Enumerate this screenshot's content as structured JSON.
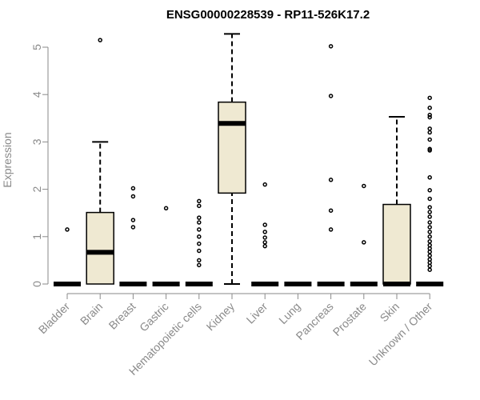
{
  "chart_data": {
    "type": "boxplot",
    "title": "ENSG00000228539 - RP11-526K17.2",
    "xlabel": "",
    "ylabel": "Expression",
    "ylim": [
      0,
      5.3
    ],
    "yticks": [
      0,
      1,
      2,
      3,
      4,
      5
    ],
    "box_fill": "#efe9d2",
    "categories": [
      "Bladder",
      "Brain",
      "Breast",
      "Gastric",
      "Hematopoietic cells",
      "Kidney",
      "Liver",
      "Lung",
      "Pancreas",
      "Prostate",
      "Skin",
      "Unknown / Other"
    ],
    "boxes": [
      {
        "q1": 0,
        "median": 0,
        "q3": 0,
        "whisker_low": 0,
        "whisker_high": 0,
        "outliers": [
          1.15
        ]
      },
      {
        "q1": 0,
        "median": 0.67,
        "q3": 1.51,
        "whisker_low": 0,
        "whisker_high": 3.0,
        "outliers": [
          5.15
        ]
      },
      {
        "q1": 0,
        "median": 0,
        "q3": 0,
        "whisker_low": 0,
        "whisker_high": 0,
        "outliers": [
          1.2,
          1.35,
          1.85,
          2.02
        ]
      },
      {
        "q1": 0,
        "median": 0,
        "q3": 0,
        "whisker_low": 0,
        "whisker_high": 0,
        "outliers": [
          1.6
        ]
      },
      {
        "q1": 0,
        "median": 0,
        "q3": 0,
        "whisker_low": 0,
        "whisker_high": 0,
        "outliers": [
          0.4,
          0.5,
          0.7,
          0.85,
          1.0,
          1.15,
          1.3,
          1.4,
          1.65,
          1.75
        ]
      },
      {
        "q1": 1.92,
        "median": 3.39,
        "q3": 3.84,
        "whisker_low": 0,
        "whisker_high": 5.28,
        "outliers": []
      },
      {
        "q1": 0,
        "median": 0,
        "q3": 0,
        "whisker_low": 0,
        "whisker_high": 0,
        "outliers": [
          0.8,
          0.88,
          0.98,
          1.1,
          1.25,
          2.1
        ]
      },
      {
        "q1": 0,
        "median": 0,
        "q3": 0,
        "whisker_low": 0,
        "whisker_high": 0,
        "outliers": []
      },
      {
        "q1": 0,
        "median": 0,
        "q3": 0,
        "whisker_low": 0,
        "whisker_high": 0,
        "outliers": [
          1.15,
          1.55,
          2.2,
          3.97,
          5.02
        ]
      },
      {
        "q1": 0,
        "median": 0,
        "q3": 0,
        "whisker_low": 0,
        "whisker_high": 0,
        "outliers": [
          0.88,
          2.07
        ]
      },
      {
        "q1": 0,
        "median": 0,
        "q3": 1.68,
        "whisker_low": 0,
        "whisker_high": 3.53,
        "outliers": []
      },
      {
        "q1": 0,
        "median": 0,
        "q3": 0,
        "whisker_low": 0,
        "whisker_high": 0,
        "outliers": [
          0.3,
          0.38,
          0.45,
          0.52,
          0.6,
          0.68,
          0.75,
          0.82,
          0.9,
          1.0,
          1.1,
          1.2,
          1.3,
          1.42,
          1.52,
          1.62,
          1.8,
          1.98,
          2.25,
          2.82,
          2.85,
          3.05,
          3.2,
          3.28,
          3.52,
          3.57,
          3.72,
          3.93
        ]
      }
    ]
  }
}
